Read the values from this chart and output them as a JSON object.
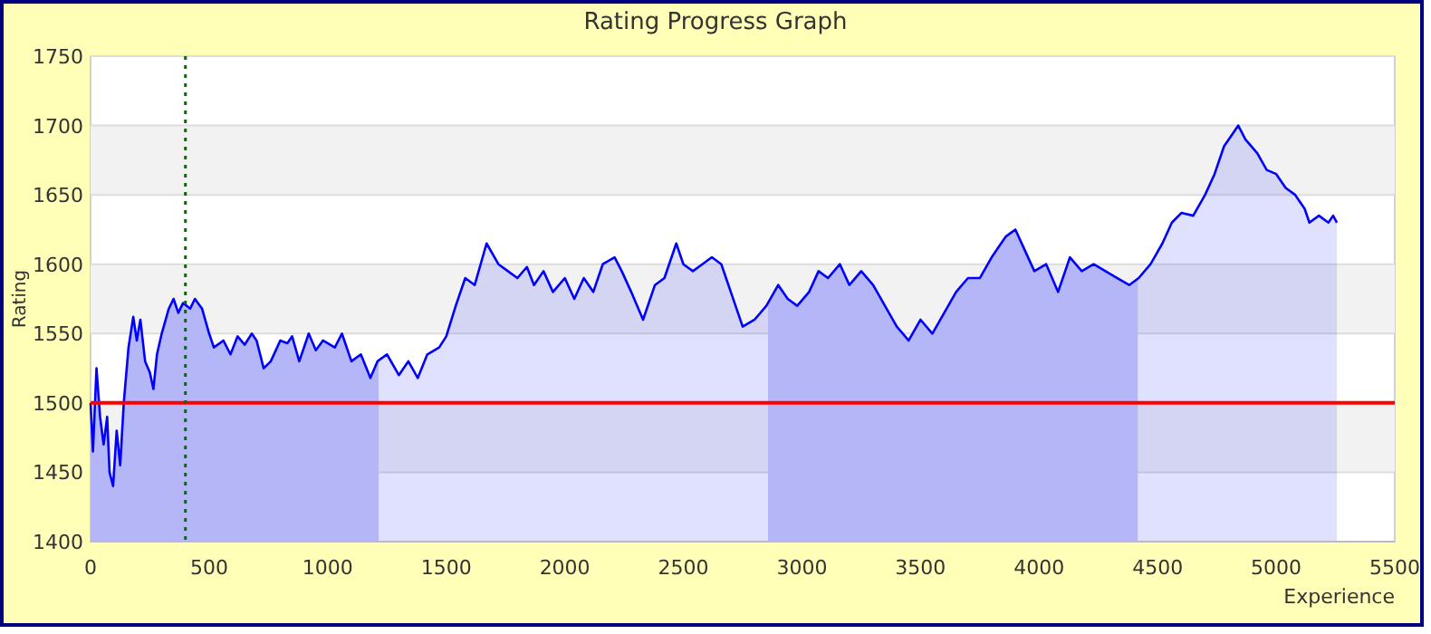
{
  "chart_data": {
    "type": "area",
    "title": "Rating Progress Graph",
    "xlabel": "Experience",
    "ylabel": "Rating",
    "xlim": [
      0,
      5500
    ],
    "xticks": [
      0,
      500,
      1000,
      1500,
      2000,
      2500,
      3000,
      3500,
      4000,
      4500,
      5000,
      5500
    ],
    "ylim": [
      1400,
      1750
    ],
    "yticks": [
      1400,
      1450,
      1500,
      1550,
      1600,
      1650,
      1700,
      1750
    ],
    "grid": "y",
    "x": [
      0,
      10,
      25,
      40,
      55,
      70,
      80,
      95,
      110,
      125,
      140,
      160,
      180,
      195,
      210,
      230,
      250,
      265,
      280,
      300,
      330,
      350,
      370,
      390,
      420,
      440,
      470,
      500,
      520,
      560,
      590,
      620,
      650,
      680,
      700,
      730,
      760,
      800,
      830,
      850,
      880,
      920,
      950,
      980,
      1030,
      1060,
      1100,
      1140,
      1180,
      1210,
      1250,
      1300,
      1340,
      1380,
      1420,
      1470,
      1500,
      1540,
      1580,
      1620,
      1670,
      1720,
      1760,
      1800,
      1840,
      1870,
      1910,
      1950,
      2000,
      2040,
      2080,
      2120,
      2160,
      2210,
      2240,
      2280,
      2330,
      2380,
      2420,
      2470,
      2500,
      2540,
      2580,
      2620,
      2660,
      2700,
      2750,
      2800,
      2850,
      2900,
      2940,
      2980,
      3030,
      3070,
      3110,
      3160,
      3200,
      3250,
      3300,
      3350,
      3400,
      3450,
      3500,
      3550,
      3600,
      3650,
      3700,
      3750,
      3800,
      3860,
      3900,
      3940,
      3980,
      4030,
      4080,
      4130,
      4180,
      4230,
      4280,
      4330,
      4380,
      4420,
      4470,
      4520,
      4560,
      4600,
      4650,
      4700,
      4740,
      4780,
      4820,
      4840,
      4870,
      4920,
      4960,
      5000,
      5040,
      5080,
      5120,
      5140,
      5180,
      5220,
      5240,
      5256
    ],
    "series": [
      {
        "color": "#0000ff",
        "values": [
          1500,
          1465,
          1525,
          1490,
          1470,
          1490,
          1450,
          1440,
          1480,
          1455,
          1500,
          1540,
          1562,
          1545,
          1560,
          1530,
          1522,
          1510,
          1535,
          1550,
          1568,
          1575,
          1565,
          1572,
          1568,
          1575,
          1568,
          1550,
          1540,
          1545,
          1535,
          1548,
          1542,
          1550,
          1545,
          1525,
          1530,
          1545,
          1543,
          1548,
          1530,
          1550,
          1538,
          1545,
          1540,
          1550,
          1530,
          1535,
          1518,
          1530,
          1535,
          1520,
          1530,
          1518,
          1535,
          1540,
          1548,
          1570,
          1590,
          1585,
          1615,
          1600,
          1595,
          1590,
          1598,
          1585,
          1595,
          1580,
          1590,
          1575,
          1590,
          1580,
          1600,
          1605,
          1595,
          1580,
          1560,
          1585,
          1590,
          1615,
          1600,
          1595,
          1600,
          1605,
          1600,
          1580,
          1555,
          1560,
          1570,
          1585,
          1575,
          1570,
          1580,
          1595,
          1590,
          1600,
          1585,
          1595,
          1585,
          1570,
          1555,
          1545,
          1560,
          1550,
          1565,
          1580,
          1590,
          1590,
          1605,
          1620,
          1625,
          1610,
          1595,
          1600,
          1580,
          1605,
          1595,
          1600,
          1595,
          1590,
          1585,
          1590,
          1600,
          1615,
          1630,
          1637,
          1635,
          1650,
          1665,
          1685,
          1695,
          1700,
          1690,
          1680,
          1668,
          1665,
          1655,
          1650,
          1640,
          1630,
          1635,
          1630,
          1635,
          1630
        ]
      }
    ],
    "bands": [
      {
        "axis": "x",
        "from": 0,
        "to": 1215,
        "color": "#cfd0f8"
      },
      {
        "axis": "x",
        "from": 2857,
        "to": 4416,
        "color": "#cfd0f8"
      }
    ],
    "ref_lines": [
      {
        "axis": "y",
        "value": 1500,
        "color": "#ff0000",
        "line_style": "solid"
      },
      {
        "axis": "x",
        "value": 400,
        "color": "#007000",
        "line_style": "dotted"
      }
    ]
  }
}
